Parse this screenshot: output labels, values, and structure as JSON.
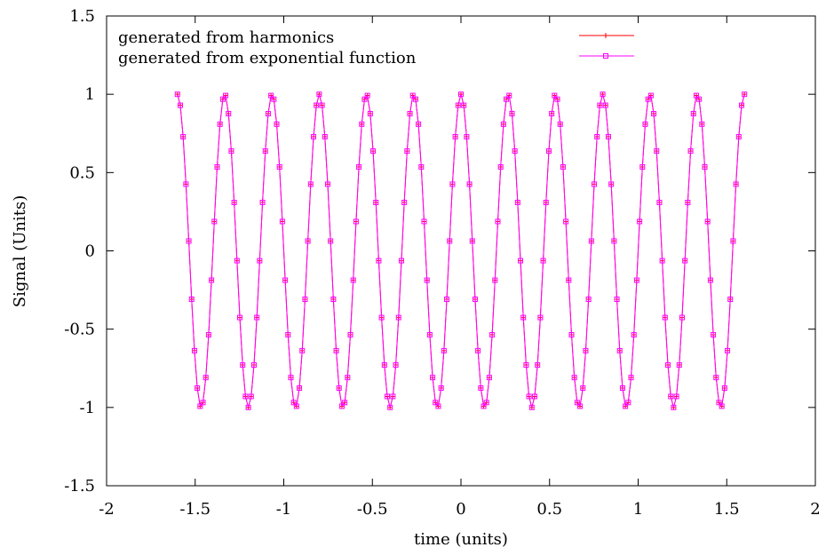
{
  "chart_data": {
    "type": "line",
    "title": "",
    "xlabel": "time (units)",
    "ylabel": "Signal (Units)",
    "xlim": [
      -2,
      2
    ],
    "ylim": [
      -1.5,
      1.5
    ],
    "xticks": [
      "-2",
      "-1.5",
      "-1",
      "-0.5",
      "0",
      "0.5",
      "1",
      "1.5",
      "2"
    ],
    "yticks": [
      "-1.5",
      "-1",
      "-0.5",
      "0",
      "0.5",
      "1",
      "1.5"
    ],
    "grid": false,
    "legend_position": "top",
    "function": "cos(2*pi*3.75*t)",
    "x_range": [
      -1.6,
      1.6
    ],
    "sample_step": 0.016,
    "series": [
      {
        "name": "generated from harmonics",
        "color": "#ff0000",
        "marker": "plus",
        "frequency": 3.75
      },
      {
        "name": "generated from exponential function",
        "color": "#ff00ff",
        "marker": "open-square",
        "frequency": 3.75
      }
    ]
  }
}
